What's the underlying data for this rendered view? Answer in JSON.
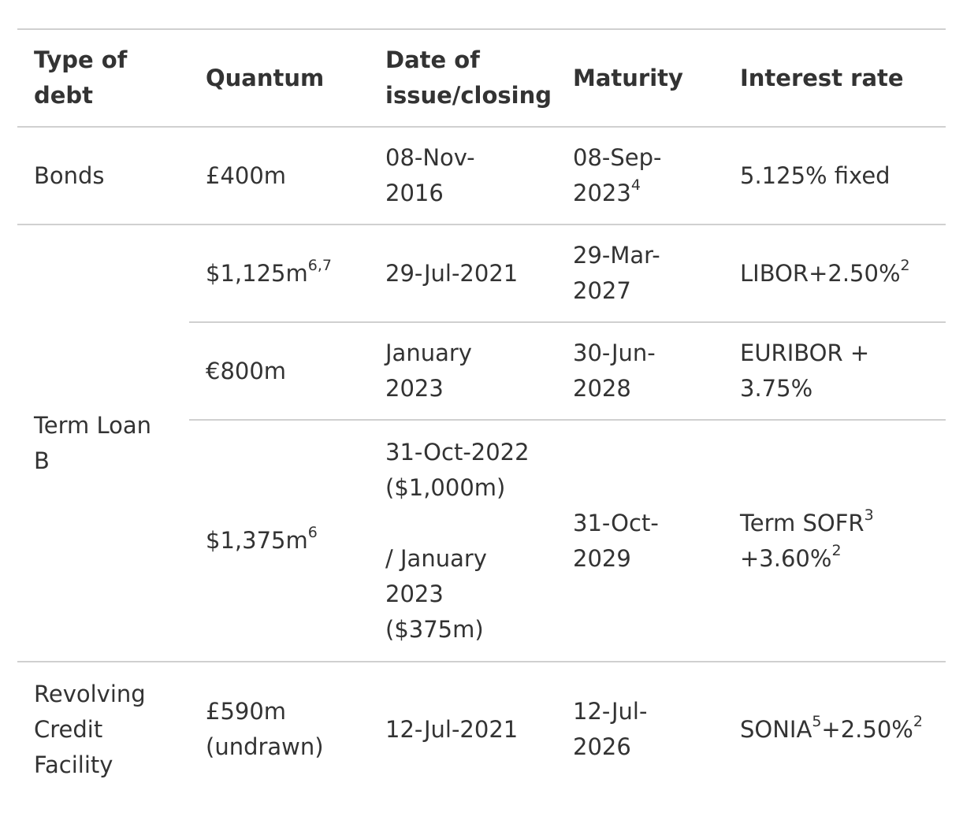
{
  "headers": {
    "type_of_debt": [
      "Type of",
      "debt"
    ],
    "quantum": "Quantum",
    "date": [
      "Date of",
      "issue/closing"
    ],
    "maturity": "Maturity",
    "interest_rate": "Interest rate"
  },
  "rows": {
    "bonds": {
      "type": "Bonds",
      "quantum": "£400m",
      "date": [
        "08-Nov-",
        "2016"
      ],
      "maturity": [
        "08-Sep-",
        "2023"
      ],
      "maturity_sup": "4",
      "rate": "5.125% fixed"
    },
    "tlb": {
      "type": [
        "Term Loan",
        "B"
      ],
      "usd1": {
        "quantum": "$1,125m",
        "quantum_sup": "6,7",
        "date": "29-Jul-2021",
        "maturity": [
          "29-Mar-",
          "2027"
        ],
        "rate": "LIBOR+2.50%",
        "rate_sup": "2"
      },
      "eur": {
        "quantum": "€800m",
        "date": [
          "January",
          "2023"
        ],
        "maturity": [
          "30-Jun-",
          "2028"
        ],
        "rate": [
          "EURIBOR +",
          "3.75%"
        ]
      },
      "usd2": {
        "quantum": "$1,375m",
        "quantum_sup": "6",
        "date_a": [
          "31-Oct-2022",
          "($1,000m)"
        ],
        "date_b": [
          "/ January",
          "2023",
          "($375m)"
        ],
        "maturity": [
          "31-Oct-",
          "2029"
        ],
        "rate_line1": "Term SOFR",
        "rate_line1_sup": "3",
        "rate_line2": "+3.60%",
        "rate_line2_sup": "2"
      }
    },
    "rcf": {
      "type": [
        "Revolving",
        "Credit",
        "Facility"
      ],
      "quantum": [
        "£590m",
        "(undrawn)"
      ],
      "date": "12-Jul-2021",
      "maturity": [
        "12-Jul-",
        "2026"
      ],
      "rate_a": "SONIA",
      "rate_a_sup": "5",
      "rate_b": "+2.50%",
      "rate_b_sup": "2"
    }
  }
}
